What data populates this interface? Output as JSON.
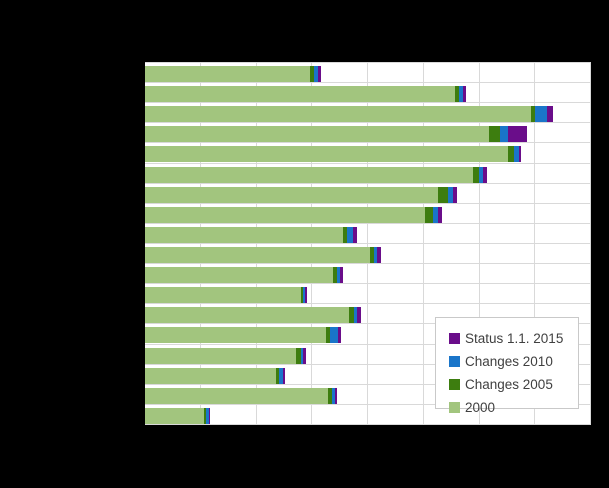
{
  "window": {
    "background_color": "#000000",
    "plot_background_color": "#ffffff",
    "gridline_color": "#d9d9d9"
  },
  "chart_data": {
    "type": "bar",
    "orientation": "horizontal",
    "stacked": true,
    "title": "",
    "xlabel": "",
    "ylabel": "",
    "axis_tick_labels_visible": false,
    "category_labels_visible": false,
    "note": "Axis and category labels are not legible in the screenshot (rendered black on black). Values are estimated in axis units where one vertical gridline interval = 100 units.",
    "xlim": [
      0,
      800
    ],
    "x_gridline_step": 100,
    "grid": true,
    "legend_position": "inside-bottom-right",
    "num_categories": 18,
    "categories": [
      "",
      "",
      "",
      "",
      "",
      "",
      "",
      "",
      "",
      "",
      "",
      "",
      "",
      "",
      "",
      "",
      "",
      ""
    ],
    "series": [
      {
        "name": "2000",
        "color": "#a2c57e",
        "values": [
          296,
          556,
          692,
          617,
          652,
          589,
          526,
          502,
          356,
          404,
          337,
          280,
          366,
          325,
          271,
          235,
          329,
          105
        ]
      },
      {
        "name": "Changes 2005",
        "color": "#3d7d0f",
        "values": [
          7,
          7,
          8,
          20,
          9,
          10,
          18,
          15,
          7,
          6,
          7,
          4,
          9,
          6,
          8,
          6,
          6,
          4
        ]
      },
      {
        "name": "Changes 2010",
        "color": "#1a75c9",
        "values": [
          7,
          8,
          22,
          14,
          9,
          8,
          9,
          8,
          10,
          7,
          6,
          3,
          6,
          15,
          5,
          6,
          5,
          5
        ]
      },
      {
        "name": "Status 1.1. 2015",
        "color": "#6a0d8a",
        "values": [
          6,
          4,
          10,
          34,
          4,
          7,
          7,
          8,
          8,
          6,
          6,
          3,
          6,
          6,
          4,
          4,
          5,
          2
        ]
      }
    ]
  },
  "legend": {
    "items": [
      {
        "label": "Status 1.1. 2015",
        "color": "#6a0d8a"
      },
      {
        "label": "Changes 2010",
        "color": "#1a75c9"
      },
      {
        "label": "Changes 2005",
        "color": "#3d7d0f"
      },
      {
        "label": "2000",
        "color": "#a2c57e"
      }
    ]
  }
}
